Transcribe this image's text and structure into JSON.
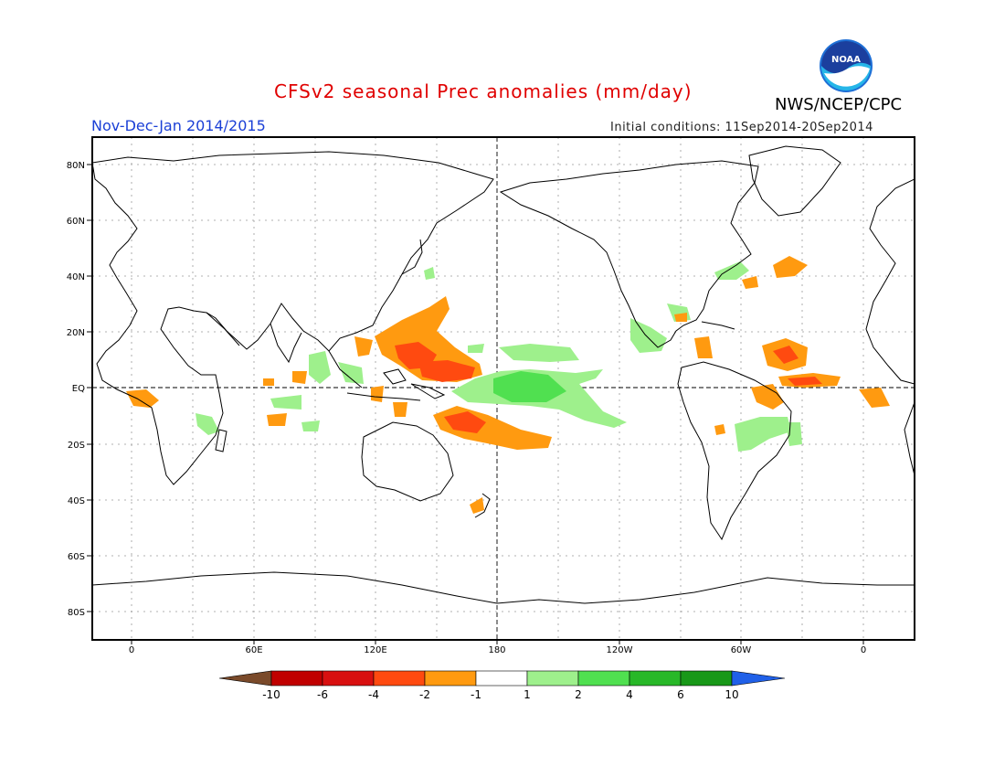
{
  "header": {
    "title": "CFSv2 seasonal Prec anomalies (mm/day)",
    "period": "Nov-Dec-Jan 2014/2015",
    "initial_conditions": "Initial conditions: 11Sep2014-20Sep2014",
    "agency": "NWS/NCEP/CPC",
    "logo_text": "NOAA"
  },
  "map": {
    "projection": "cylindrical equidistant, centered 180",
    "lat_labels": [
      "80N",
      "60N",
      "40N",
      "20N",
      "EQ",
      "20S",
      "40S",
      "60S",
      "80S"
    ],
    "lon_labels": [
      "0",
      "60E",
      "120E",
      "180",
      "120W",
      "60W",
      "0"
    ],
    "grid": "dotted gridlines every 20° latitude / 30° longitude; dashed equator and 180° meridian"
  },
  "legend": {
    "ticks": [
      "-10",
      "-6",
      "-4",
      "-2",
      "-1",
      "1",
      "2",
      "4",
      "6",
      "10"
    ],
    "colors": [
      "#7a4a2a",
      "#c00000",
      "#d81010",
      "#ff4a10",
      "#ff9a10",
      "#ffffff",
      "#9ef08c",
      "#50e050",
      "#28b828",
      "#189818",
      "#2060e8"
    ]
  }
}
